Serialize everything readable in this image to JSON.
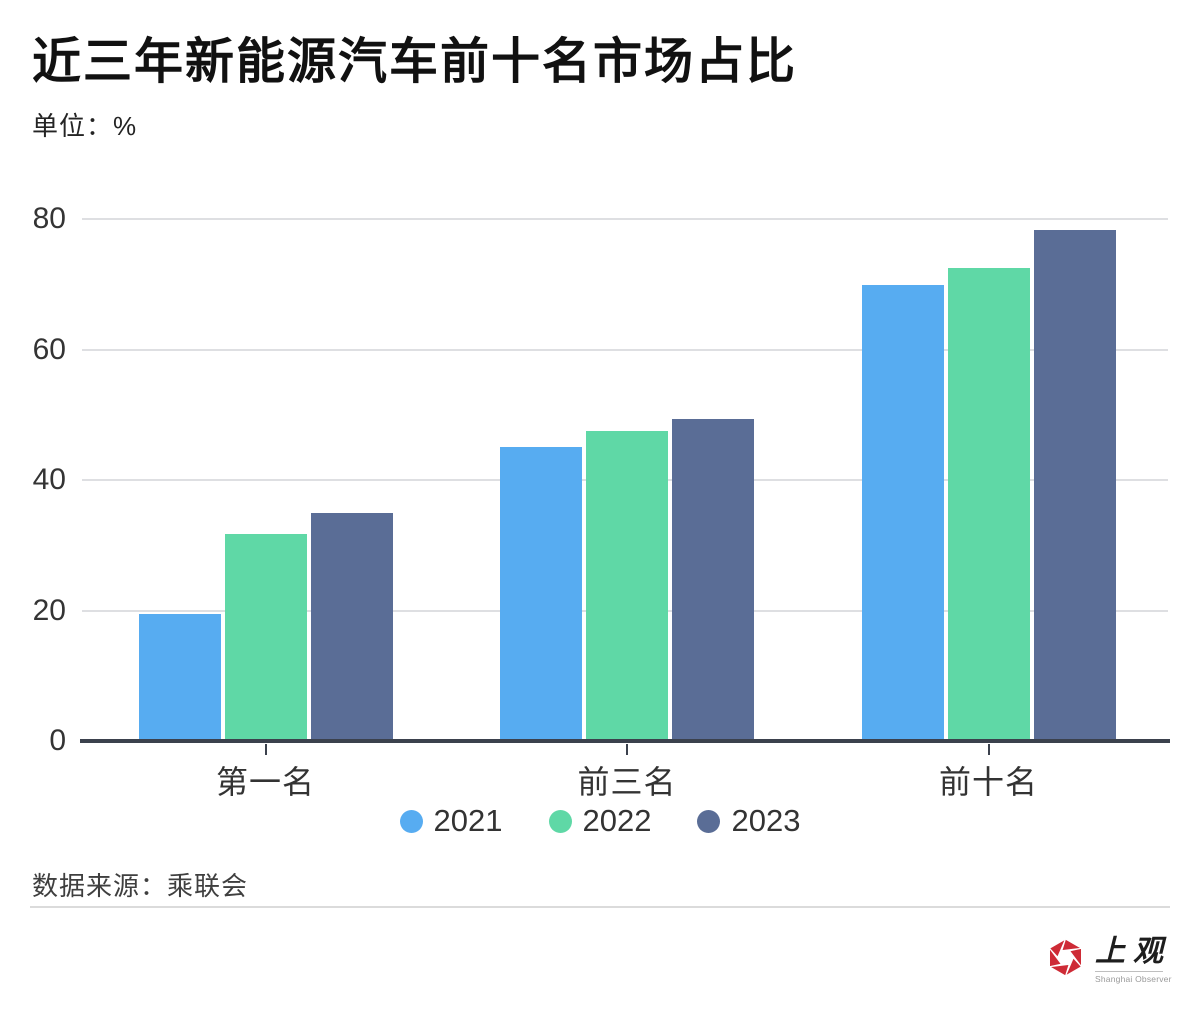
{
  "header": {
    "title": "近三年新能源汽车前十名市场占比",
    "unit": "单位：%"
  },
  "chart_data": {
    "type": "bar",
    "title": "近三年新能源汽车前十名市场占比",
    "ylabel": "单位：%",
    "xlabel": "",
    "categories": [
      "第一名",
      "前三名",
      "前十名"
    ],
    "series": [
      {
        "name": "2021",
        "color": "#57acf1",
        "values": [
          19.5,
          45.0,
          69.9
        ]
      },
      {
        "name": "2022",
        "color": "#5fd8a6",
        "values": [
          31.8,
          47.5,
          72.5
        ]
      },
      {
        "name": "2023",
        "color": "#5a6d96",
        "values": [
          35.0,
          49.4,
          78.3
        ]
      }
    ],
    "ylim": [
      0,
      80
    ],
    "yticks": [
      0,
      20,
      40,
      60,
      80
    ],
    "grid": true,
    "legend_position": "bottom"
  },
  "footer": {
    "source": "数据来源：乘联会"
  },
  "logo": {
    "cn": "上观",
    "en": "Shanghai Observer",
    "accent": "#ce2b36"
  },
  "colors": {
    "axis": "#3b414d",
    "gridline": "#dedfe2",
    "text": "#333333"
  }
}
